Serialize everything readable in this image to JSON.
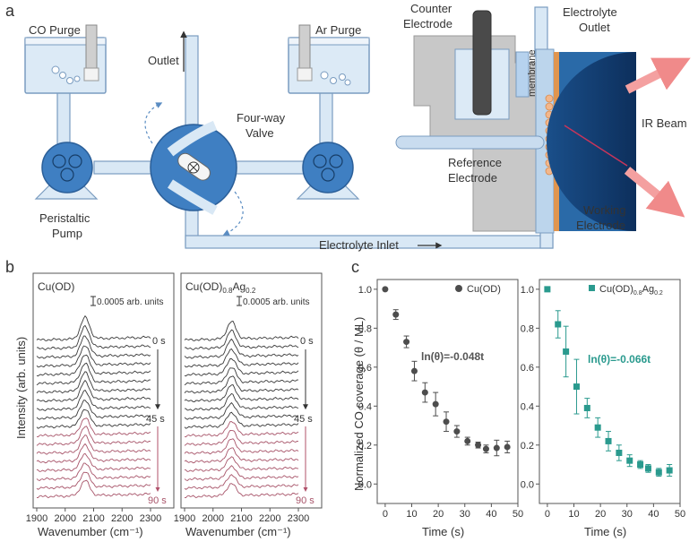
{
  "panel_letters": {
    "a": "a",
    "b": "b",
    "c": "c"
  },
  "schematic": {
    "co_purge": "CO Purge",
    "ar_purge": "Ar Purge",
    "outlet": "Outlet",
    "valve_line1": "Four-way",
    "valve_line2": "Valve",
    "pump_line1": "Peristaltic",
    "pump_line2": "Pump",
    "electrolyte_inlet": "Electrolyte Inlet",
    "counter_line1": "Counter",
    "counter_line2": "Electrode",
    "outlet2_line1": "Electrolyte",
    "outlet2_line2": "Outlet",
    "membrane": "membrane",
    "ir_beam": "IR Beam",
    "reference_line1": "Reference",
    "reference_line2": "Electrode",
    "working_line1": "Working",
    "working_line2": "Electrode"
  },
  "spectra": {
    "ylabel": "Intensity (arb. units)",
    "xlabel": "Wavenumber (cm⁻¹)",
    "x_ticks": [
      "1900",
      "2000",
      "2100",
      "2200",
      "2300"
    ],
    "xlim": [
      1900,
      2300
    ],
    "scale_bar": "0.0005 arb. units",
    "time_labels": [
      "0 s",
      "45 s",
      "90 s"
    ],
    "n_black": 11,
    "n_red": 8,
    "colors": {
      "early": "#3a3a3a",
      "late": "#a8556a"
    },
    "panels": [
      {
        "title": "Cu(OD)",
        "peak": 2070,
        "max_amp": 1.0
      },
      {
        "title_main": "Cu(OD)",
        "title_sub1": "0.8",
        "title_mid": "Ag",
        "title_sub2": "0.2",
        "peak": 2065,
        "max_amp": 0.8
      }
    ]
  },
  "chart_data": [
    {
      "type": "scatter",
      "title": "",
      "xlabel": "Time (s)",
      "ylabel": "Normalized CO coverage (θ / ML)",
      "xlim": [
        -3,
        50
      ],
      "ylim": [
        -0.1,
        1.05
      ],
      "x_ticks": [
        0,
        10,
        20,
        30,
        40,
        50
      ],
      "y_ticks": [
        0.0,
        0.2,
        0.4,
        0.6,
        0.8,
        1.0
      ],
      "series": [
        {
          "name": "Cu(OD)",
          "color": "#4d4d4d",
          "marker": "circle",
          "x": [
            0,
            4,
            8,
            11,
            15,
            19,
            23,
            27,
            31,
            35,
            38,
            42,
            46
          ],
          "y": [
            1.0,
            0.87,
            0.73,
            0.58,
            0.47,
            0.41,
            0.32,
            0.27,
            0.22,
            0.2,
            0.18,
            0.185,
            0.19
          ],
          "err": [
            0.0,
            0.025,
            0.03,
            0.05,
            0.05,
            0.06,
            0.05,
            0.03,
            0.02,
            0.015,
            0.02,
            0.04,
            0.03
          ]
        }
      ],
      "annotation": "ln(θ)=-0.048t"
    },
    {
      "type": "scatter",
      "title": "",
      "xlabel": "Time (s)",
      "ylabel": "",
      "xlim": [
        -3,
        50
      ],
      "ylim": [
        -0.1,
        1.05
      ],
      "x_ticks": [
        0,
        10,
        20,
        30,
        40,
        50
      ],
      "y_ticks": [
        0.0,
        0.2,
        0.4,
        0.6,
        0.8,
        1.0
      ],
      "series": [
        {
          "name": "Cu(OD)0.8Ag0.2",
          "color": "#2a9a8e",
          "marker": "square",
          "x": [
            0,
            4,
            7,
            11,
            15,
            19,
            23,
            27,
            31,
            35,
            38,
            42,
            46
          ],
          "y": [
            1.0,
            0.82,
            0.68,
            0.5,
            0.39,
            0.29,
            0.22,
            0.16,
            0.12,
            0.1,
            0.08,
            0.06,
            0.07
          ],
          "err": [
            0.0,
            0.07,
            0.13,
            0.14,
            0.05,
            0.05,
            0.05,
            0.04,
            0.03,
            0.02,
            0.02,
            0.02,
            0.03
          ]
        }
      ],
      "annotation": "ln(θ)=-0.066t"
    }
  ],
  "legend_text": {
    "s1": "Cu(OD)",
    "s2_main": "Cu(OD)",
    "s2_sub1": "0.8",
    "s2_mid": "Ag",
    "s2_sub2": "0.2"
  }
}
